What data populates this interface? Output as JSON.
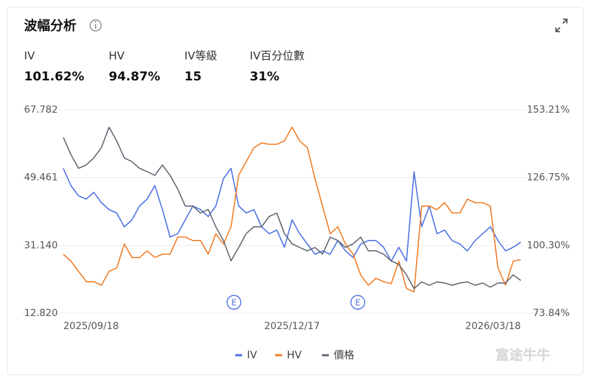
{
  "stats": [
    {
      "label": "IV",
      "value": "101.62%"
    },
    {
      "label": "HV",
      "value": "94.87%"
    },
    {
      "label": "IV等級",
      "value": "15"
    },
    {
      "label": "IV百分位數",
      "value": "31%"
    }
  ],
  "event_markers": [
    "E",
    "E"
  ],
  "watermark": "富途牛牛",
  "chart_data": {
    "type": "line",
    "title": "波幅分析",
    "categories": [
      "2025/09/18",
      null,
      null,
      null,
      null,
      null,
      null,
      null,
      null,
      null,
      null,
      null,
      null,
      null,
      null,
      null,
      null,
      null,
      null,
      null,
      null,
      null,
      null,
      null,
      null,
      null,
      null,
      null,
      null,
      null,
      "2025/12/17",
      null,
      null,
      null,
      null,
      null,
      null,
      null,
      null,
      null,
      null,
      null,
      null,
      null,
      null,
      null,
      null,
      null,
      null,
      null,
      null,
      null,
      null,
      null,
      null,
      null,
      null,
      null,
      null,
      null,
      "2026/03/18"
    ],
    "ylim": [
      12.82,
      67.782
    ],
    "yticks": [
      {
        "value": 12.82,
        "label": "12.820"
      },
      {
        "value": 31.14,
        "label": "31.140"
      },
      49.461,
      67.782
    ],
    "y2lim": [
      73.84,
      153.21
    ],
    "y2ticks": [
      {
        "value": 73.84,
        "label": "73.84%"
      },
      {
        "value": 100.3,
        "label": "100.30%"
      },
      {
        "value": 126.75,
        "label": "126.75%"
      },
      {
        "value": 153.21,
        "label": "153.21%"
      }
    ],
    "grid": true,
    "legend": "bottom",
    "series": [
      {
        "name": "IV",
        "color": "#4a6fe3",
        "axis": "y2",
        "values": [
          130.4,
          123.7,
          119.7,
          118.4,
          121.1,
          117,
          114.3,
          113,
          107.6,
          110.3,
          115.7,
          118.4,
          123.7,
          114.3,
          103.6,
          104.9,
          110.3,
          115.7,
          114.3,
          111.6,
          115.7,
          126.4,
          130.4,
          115.7,
          113,
          114.3,
          107.6,
          104.9,
          106.3,
          99.6,
          110.3,
          104.9,
          100.9,
          96.9,
          98.2,
          96.9,
          102.2,
          98.2,
          95.6,
          100.9,
          102.2,
          102.2,
          99.6,
          94.2,
          99.6,
          94.2,
          129.1,
          107.6,
          115.7,
          104.9,
          106.3,
          102.2,
          100.9,
          98.2,
          102.2,
          104.9,
          107.6,
          102.2,
          98.2,
          99.6,
          101.62
        ]
      },
      {
        "name": "HV",
        "color": "#f07a22",
        "axis": "y2",
        "values": [
          96.9,
          94.2,
          90.2,
          86.2,
          86.2,
          84.8,
          90.2,
          91.5,
          100.9,
          95.6,
          95.6,
          98.2,
          95.6,
          96.9,
          96.9,
          103.6,
          103.6,
          102.2,
          102.2,
          96.9,
          104.9,
          100.9,
          107.6,
          127.7,
          133.1,
          138.5,
          140.3,
          139.8,
          139.8,
          141.1,
          146.5,
          141.1,
          138.5,
          126.4,
          115.7,
          104.9,
          107.6,
          100.9,
          96.9,
          88.8,
          84.8,
          87.5,
          86.2,
          85.4,
          94.2,
          83.5,
          82.2,
          115.7,
          115.7,
          114.3,
          117,
          113,
          113,
          118.4,
          117,
          117,
          115.7,
          91.5,
          84.8,
          94.2,
          94.87
        ]
      },
      {
        "name": "價格",
        "color": "#5f6470",
        "values": [
          60.4,
          55.7,
          52,
          52.9,
          54.8,
          57.6,
          63.1,
          59.4,
          54.8,
          53.8,
          52,
          51.1,
          50.1,
          52.9,
          50.1,
          46.4,
          41.8,
          41.8,
          39.9,
          40.9,
          36.2,
          32.5,
          27,
          30.6,
          34.4,
          36.2,
          36.2,
          39,
          39.9,
          34.4,
          31.6,
          30.6,
          29.7,
          30.6,
          28.8,
          33.4,
          32.5,
          30.6,
          31.6,
          33.4,
          29.7,
          29.7,
          28.8,
          27,
          26,
          23.2,
          19.5,
          21.3,
          20.4,
          21.3,
          21,
          20.4,
          21,
          21.3,
          20.4,
          21,
          19.9,
          21,
          21,
          23.2,
          21.7
        ]
      }
    ]
  }
}
